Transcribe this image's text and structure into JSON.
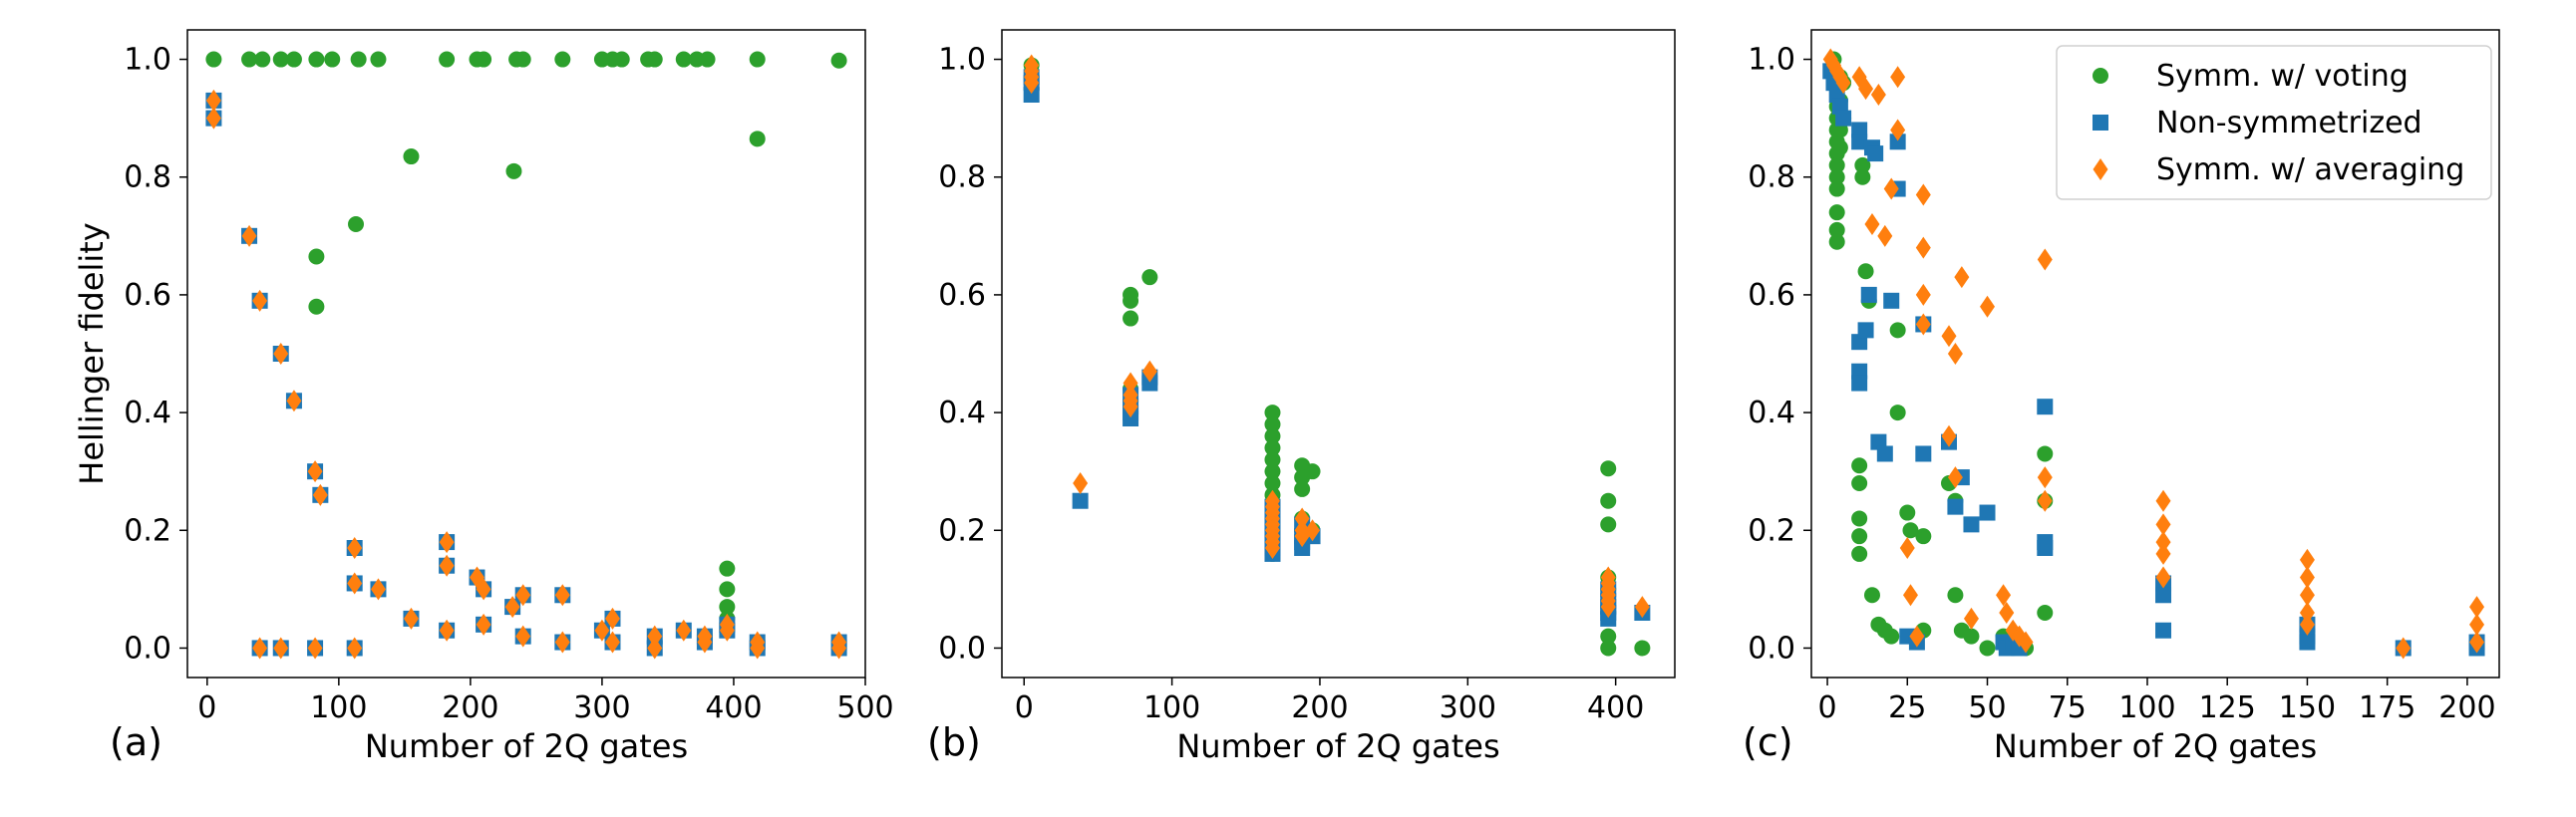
{
  "figure": {
    "legend": [
      {
        "label": "Symm. w/ voting",
        "color": "#2ca02c",
        "marker": "circle"
      },
      {
        "label": "Non-symmetrized",
        "color": "#1f77b4",
        "marker": "square"
      },
      {
        "label": "Symm. w/ averaging",
        "color": "#ff7f0e",
        "marker": "diamond"
      }
    ]
  },
  "chart_data": [
    {
      "type": "scatter",
      "panel_label": "(a)",
      "xlabel": "Number of 2Q gates",
      "ylabel": "Hellinger fidelity",
      "xlim": [
        -15,
        500
      ],
      "ylim": [
        -0.05,
        1.05
      ],
      "xticks": [
        0,
        100,
        200,
        300,
        400,
        500
      ],
      "yticks": [
        0.0,
        0.2,
        0.4,
        0.6,
        0.8,
        1.0
      ],
      "tick_labels_x": [
        "0",
        "100",
        "200",
        "300",
        "400",
        "500"
      ],
      "tick_labels_y": [
        "0.0",
        "0.2",
        "0.4",
        "0.6",
        "0.8",
        "1.0"
      ],
      "series": [
        {
          "color": "#2ca02c",
          "marker": "circle",
          "x": [
            5,
            32,
            42,
            56,
            66,
            83,
            95,
            115,
            130,
            155,
            182,
            205,
            210,
            235,
            240,
            270,
            300,
            308,
            315,
            335,
            340,
            362,
            372,
            380,
            418,
            480,
            83,
            83,
            113,
            233,
            418,
            395,
            395,
            395,
            395
          ],
          "y": [
            1.0,
            1.0,
            1.0,
            1.0,
            1.0,
            1.0,
            1.0,
            1.0,
            1.0,
            0.835,
            1.0,
            1.0,
            1.0,
            1.0,
            1.0,
            1.0,
            1.0,
            1.0,
            1.0,
            1.0,
            1.0,
            1.0,
            1.0,
            1.0,
            1.0,
            0.998,
            0.665,
            0.58,
            0.72,
            0.81,
            0.865,
            0.135,
            0.1,
            0.07,
            0.05
          ]
        },
        {
          "color": "#1f77b4",
          "marker": "square",
          "x": [
            5,
            5,
            32,
            40,
            56,
            66,
            82,
            86,
            112,
            112,
            130,
            155,
            182,
            182,
            205,
            210,
            232,
            240,
            270,
            300,
            308,
            340,
            362,
            378,
            395,
            418,
            480,
            40,
            56,
            82,
            112,
            182,
            210,
            240,
            270,
            308,
            340,
            378,
            395,
            418,
            480
          ],
          "y": [
            0.93,
            0.9,
            0.7,
            0.59,
            0.5,
            0.42,
            0.3,
            0.26,
            0.17,
            0.11,
            0.1,
            0.05,
            0.18,
            0.14,
            0.12,
            0.1,
            0.07,
            0.09,
            0.09,
            0.03,
            0.05,
            0.02,
            0.03,
            0.02,
            0.04,
            0.01,
            0.01,
            0.0,
            0.0,
            0.0,
            0.0,
            0.03,
            0.04,
            0.02,
            0.01,
            0.01,
            0.0,
            0.01,
            0.03,
            0.0,
            0.0
          ]
        },
        {
          "color": "#ff7f0e",
          "marker": "diamond",
          "x": [
            5,
            5,
            32,
            40,
            56,
            66,
            82,
            86,
            112,
            112,
            130,
            155,
            182,
            182,
            205,
            210,
            232,
            240,
            270,
            300,
            308,
            340,
            362,
            378,
            395,
            418,
            480,
            40,
            56,
            82,
            112,
            182,
            210,
            240,
            270,
            308,
            340,
            378,
            395,
            418,
            480
          ],
          "y": [
            0.93,
            0.9,
            0.7,
            0.59,
            0.5,
            0.42,
            0.3,
            0.26,
            0.17,
            0.11,
            0.1,
            0.05,
            0.18,
            0.14,
            0.12,
            0.1,
            0.07,
            0.09,
            0.09,
            0.03,
            0.05,
            0.02,
            0.03,
            0.02,
            0.04,
            0.01,
            0.01,
            0.0,
            0.0,
            0.0,
            0.0,
            0.03,
            0.04,
            0.02,
            0.01,
            0.01,
            0.0,
            0.01,
            0.03,
            0.0,
            0.0
          ]
        }
      ]
    },
    {
      "type": "scatter",
      "panel_label": "(b)",
      "xlabel": "Number of 2Q gates",
      "ylabel": "",
      "xlim": [
        -15,
        440
      ],
      "ylim": [
        -0.05,
        1.05
      ],
      "xticks": [
        0,
        100,
        200,
        300,
        400
      ],
      "yticks": [
        0.0,
        0.2,
        0.4,
        0.6,
        0.8,
        1.0
      ],
      "tick_labels_x": [
        "0",
        "100",
        "200",
        "300",
        "400"
      ],
      "tick_labels_y": [
        "0.0",
        "0.2",
        "0.4",
        "0.6",
        "0.8",
        "1.0"
      ],
      "series": [
        {
          "color": "#2ca02c",
          "marker": "circle",
          "x": [
            5,
            5,
            5,
            72,
            72,
            72,
            72,
            72,
            85,
            168,
            168,
            168,
            168,
            168,
            168,
            168,
            168,
            168,
            168,
            168,
            168,
            168,
            188,
            188,
            188,
            188,
            188,
            195,
            195,
            395,
            395,
            395,
            395,
            395,
            395,
            395,
            395,
            418
          ],
          "y": [
            0.99,
            0.97,
            0.95,
            0.6,
            0.59,
            0.56,
            0.44,
            0.42,
            0.63,
            0.4,
            0.38,
            0.36,
            0.34,
            0.32,
            0.3,
            0.28,
            0.26,
            0.24,
            0.22,
            0.2,
            0.18,
            0.16,
            0.31,
            0.29,
            0.27,
            0.22,
            0.2,
            0.3,
            0.2,
            0.305,
            0.25,
            0.21,
            0.12,
            0.1,
            0.06,
            0.02,
            0.0,
            0.0
          ]
        },
        {
          "color": "#1f77b4",
          "marker": "square",
          "x": [
            5,
            5,
            5,
            38,
            72,
            72,
            72,
            72,
            85,
            85,
            168,
            168,
            168,
            168,
            168,
            168,
            168,
            168,
            188,
            188,
            188,
            188,
            195,
            395,
            395,
            395,
            395,
            395,
            418
          ],
          "y": [
            0.97,
            0.96,
            0.94,
            0.25,
            0.43,
            0.41,
            0.4,
            0.39,
            0.46,
            0.45,
            0.24,
            0.22,
            0.21,
            0.2,
            0.19,
            0.18,
            0.17,
            0.16,
            0.21,
            0.19,
            0.18,
            0.17,
            0.19,
            0.1,
            0.08,
            0.07,
            0.06,
            0.05,
            0.06
          ]
        },
        {
          "color": "#ff7f0e",
          "marker": "diamond",
          "x": [
            5,
            5,
            5,
            5,
            38,
            72,
            72,
            72,
            72,
            85,
            168,
            168,
            168,
            168,
            168,
            168,
            168,
            168,
            168,
            188,
            188,
            188,
            195,
            395,
            395,
            395,
            395,
            395,
            395,
            418
          ],
          "y": [
            0.99,
            0.98,
            0.97,
            0.96,
            0.28,
            0.45,
            0.43,
            0.42,
            0.41,
            0.47,
            0.25,
            0.24,
            0.23,
            0.22,
            0.21,
            0.2,
            0.19,
            0.18,
            0.17,
            0.22,
            0.2,
            0.19,
            0.2,
            0.12,
            0.11,
            0.1,
            0.09,
            0.08,
            0.07,
            0.07
          ]
        }
      ]
    },
    {
      "type": "scatter",
      "panel_label": "(c)",
      "xlabel": "Number of 2Q gates",
      "ylabel": "",
      "xlim": [
        -5,
        210
      ],
      "ylim": [
        -0.05,
        1.05
      ],
      "xticks": [
        0,
        25,
        50,
        75,
        100,
        125,
        150,
        175,
        200
      ],
      "yticks": [
        0.0,
        0.2,
        0.4,
        0.6,
        0.8,
        1.0
      ],
      "tick_labels_x": [
        "0",
        "25",
        "50",
        "75",
        "100",
        "125",
        "150",
        "175",
        "200"
      ],
      "tick_labels_y": [
        "0.0",
        "0.2",
        "0.4",
        "0.6",
        "0.8",
        "1.0"
      ],
      "legend_position": "top-right",
      "series": [
        {
          "name": "Symm. w/ voting",
          "color": "#2ca02c",
          "marker": "circle",
          "x": [
            2,
            2,
            3,
            3,
            3,
            3,
            3,
            3,
            3,
            3,
            3,
            3,
            3,
            3,
            4,
            4,
            4,
            4,
            5,
            5,
            10,
            10,
            10,
            10,
            10,
            11,
            11,
            12,
            13,
            14,
            16,
            18,
            20,
            22,
            22,
            25,
            26,
            28,
            30,
            30,
            38,
            40,
            40,
            42,
            45,
            50,
            55,
            56,
            58,
            60,
            62,
            68,
            68,
            68
          ],
          "y": [
            1.0,
            0.98,
            0.95,
            0.92,
            0.9,
            0.88,
            0.86,
            0.84,
            0.82,
            0.8,
            0.78,
            0.74,
            0.71,
            0.69,
            0.97,
            0.93,
            0.88,
            0.85,
            0.96,
            0.9,
            0.31,
            0.28,
            0.22,
            0.19,
            0.16,
            0.82,
            0.8,
            0.64,
            0.59,
            0.09,
            0.04,
            0.03,
            0.02,
            0.54,
            0.4,
            0.23,
            0.2,
            0.02,
            0.19,
            0.03,
            0.28,
            0.25,
            0.09,
            0.03,
            0.02,
            0.0,
            0.02,
            0.01,
            0.0,
            0.01,
            0.0,
            0.33,
            0.25,
            0.06
          ]
        },
        {
          "name": "Non-symmetrized",
          "color": "#1f77b4",
          "marker": "square",
          "x": [
            1,
            2,
            3,
            4,
            5,
            10,
            10,
            10,
            10,
            10,
            12,
            13,
            14,
            15,
            16,
            18,
            20,
            22,
            22,
            25,
            28,
            30,
            30,
            38,
            40,
            42,
            45,
            50,
            55,
            56,
            58,
            60,
            68,
            68,
            68,
            105,
            105,
            105,
            150,
            150,
            150,
            180,
            203,
            203
          ],
          "y": [
            0.98,
            0.96,
            0.94,
            0.92,
            0.9,
            0.88,
            0.86,
            0.52,
            0.47,
            0.45,
            0.54,
            0.6,
            0.85,
            0.84,
            0.35,
            0.33,
            0.59,
            0.86,
            0.78,
            0.02,
            0.01,
            0.55,
            0.33,
            0.35,
            0.24,
            0.29,
            0.21,
            0.23,
            0.01,
            0.0,
            0.01,
            0.0,
            0.41,
            0.18,
            0.17,
            0.11,
            0.09,
            0.03,
            0.04,
            0.02,
            0.01,
            0.0,
            0.01,
            0.0
          ]
        },
        {
          "name": "Symm. w/ averaging",
          "color": "#ff7f0e",
          "marker": "diamond",
          "x": [
            1,
            2,
            3,
            4,
            5,
            10,
            12,
            14,
            16,
            18,
            20,
            22,
            22,
            25,
            26,
            28,
            30,
            30,
            30,
            30,
            38,
            38,
            40,
            40,
            42,
            45,
            50,
            55,
            56,
            58,
            60,
            62,
            68,
            68,
            68,
            105,
            105,
            105,
            105,
            105,
            150,
            150,
            150,
            150,
            150,
            180,
            203,
            203,
            203
          ],
          "y": [
            1.0,
            0.99,
            0.98,
            0.97,
            0.96,
            0.97,
            0.95,
            0.72,
            0.94,
            0.7,
            0.78,
            0.88,
            0.97,
            0.17,
            0.09,
            0.02,
            0.77,
            0.68,
            0.6,
            0.55,
            0.53,
            0.36,
            0.5,
            0.29,
            0.63,
            0.05,
            0.58,
            0.09,
            0.06,
            0.03,
            0.02,
            0.01,
            0.66,
            0.29,
            0.25,
            0.25,
            0.21,
            0.18,
            0.16,
            0.12,
            0.15,
            0.12,
            0.09,
            0.06,
            0.04,
            0.0,
            0.07,
            0.04,
            0.01
          ]
        }
      ]
    }
  ]
}
